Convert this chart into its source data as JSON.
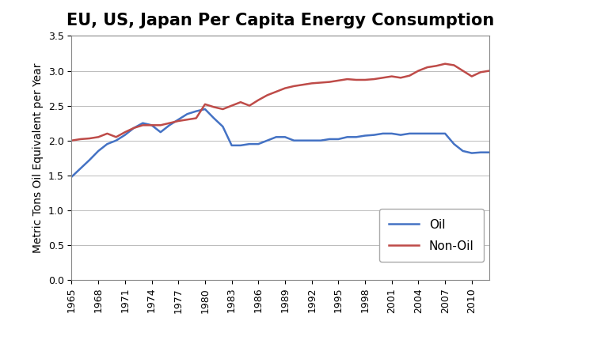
{
  "title": "EU, US, Japan Per Capita Energy Consumption",
  "ylabel": "Metric Tons Oil Equivalent per Year",
  "ylim": [
    0.0,
    3.5
  ],
  "yticks": [
    0.0,
    0.5,
    1.0,
    1.5,
    2.0,
    2.5,
    3.0,
    3.5
  ],
  "years": [
    1965,
    1966,
    1967,
    1968,
    1969,
    1970,
    1971,
    1972,
    1973,
    1974,
    1975,
    1976,
    1977,
    1978,
    1979,
    1980,
    1981,
    1982,
    1983,
    1984,
    1985,
    1986,
    1987,
    1988,
    1989,
    1990,
    1991,
    1992,
    1993,
    1994,
    1995,
    1996,
    1997,
    1998,
    1999,
    2000,
    2001,
    2002,
    2003,
    2004,
    2005,
    2006,
    2007,
    2008,
    2009,
    2010,
    2011,
    2012
  ],
  "oil": [
    1.48,
    1.6,
    1.72,
    1.85,
    1.95,
    2.0,
    2.08,
    2.18,
    2.25,
    2.22,
    2.12,
    2.22,
    2.3,
    2.38,
    2.42,
    2.45,
    2.32,
    2.2,
    1.93,
    1.93,
    1.95,
    1.95,
    2.0,
    2.05,
    2.05,
    2.0,
    2.0,
    2.0,
    2.0,
    2.02,
    2.02,
    2.05,
    2.05,
    2.07,
    2.08,
    2.1,
    2.1,
    2.08,
    2.1,
    2.1,
    2.1,
    2.1,
    2.1,
    1.95,
    1.85,
    1.82,
    1.83,
    1.83
  ],
  "nonoil": [
    2.0,
    2.02,
    2.03,
    2.05,
    2.1,
    2.05,
    2.12,
    2.18,
    2.22,
    2.22,
    2.22,
    2.25,
    2.28,
    2.3,
    2.32,
    2.52,
    2.48,
    2.45,
    2.5,
    2.55,
    2.5,
    2.58,
    2.65,
    2.7,
    2.75,
    2.78,
    2.8,
    2.82,
    2.83,
    2.84,
    2.86,
    2.88,
    2.87,
    2.87,
    2.88,
    2.9,
    2.92,
    2.9,
    2.93,
    3.0,
    3.05,
    3.07,
    3.1,
    3.08,
    3.0,
    2.92,
    2.98,
    3.0
  ],
  "oil_color": "#4472C4",
  "nonoil_color": "#BE4B48",
  "background_color": "#FFFFFF",
  "title_fontsize": 15,
  "axis_fontsize": 10,
  "tick_fontsize": 9,
  "legend_fontsize": 11
}
